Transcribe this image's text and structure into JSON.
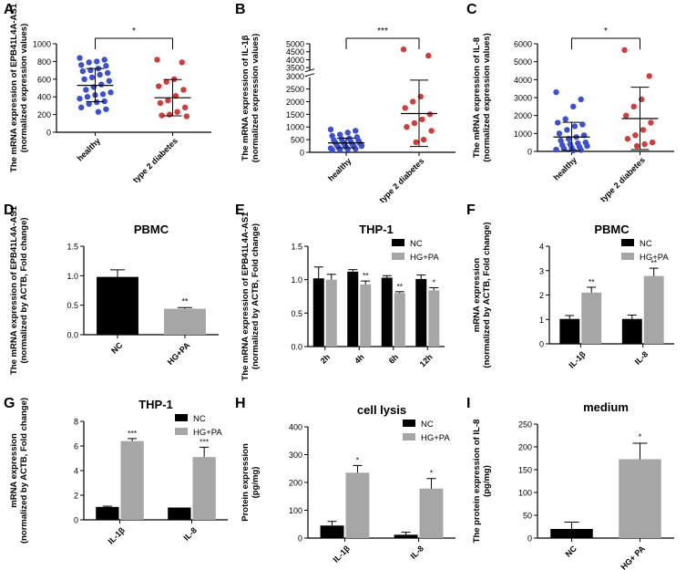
{
  "colors": {
    "axis": "#000000",
    "blue": "#3a4fd6",
    "red": "#d33a3a",
    "nc": "#000000",
    "hgpa": "#a6a6a6"
  },
  "chart_data": [
    {
      "id": "A",
      "type": "scatter",
      "panel_label": "A",
      "title": "",
      "ylabel": "The mRNA expression of EPB41L4A-AS1",
      "ylabel2": "(normalized expression values)",
      "categories": [
        "healthy",
        "type 2 diabetes"
      ],
      "ylim": [
        0,
        1000
      ],
      "yticks": [
        "0",
        "200",
        "400",
        "600",
        "800",
        "1000"
      ],
      "series": [
        {
          "name": "healthy",
          "color_key": "blue",
          "mean": 530,
          "sd_low": 345,
          "sd_high": 720,
          "values": [
            840,
            820,
            800,
            790,
            760,
            750,
            720,
            700,
            690,
            670,
            650,
            620,
            600,
            580,
            540,
            510,
            480,
            450,
            430,
            420,
            400,
            380,
            350,
            340,
            320,
            280,
            260,
            230
          ]
        },
        {
          "name": "type 2 diabetes",
          "color_key": "red",
          "mean": 390,
          "sd_low": 185,
          "sd_high": 595,
          "values": [
            820,
            790,
            600,
            570,
            520,
            480,
            410,
            360,
            330,
            280,
            230,
            200,
            190,
            180
          ]
        }
      ],
      "significance": "*"
    },
    {
      "id": "B",
      "type": "scatter",
      "panel_label": "B",
      "title": "",
      "ylabel": "The mRNA expression of IL-1β",
      "ylabel2": "(normalized expression values)",
      "categories": [
        "healthy",
        "type 2 diabetes"
      ],
      "ylim": [
        0,
        5000
      ],
      "axis_break": [
        3000,
        3500
      ],
      "yticks": [
        "0",
        "500",
        "1000",
        "1500",
        "2000",
        "2500",
        "3000",
        "3500",
        "4000",
        "4500",
        "5000"
      ],
      "series": [
        {
          "name": "healthy",
          "color_key": "blue",
          "mean": 370,
          "sd_low": 180,
          "sd_high": 560,
          "values": [
            900,
            850,
            780,
            700,
            650,
            600,
            550,
            520,
            480,
            450,
            420,
            400,
            380,
            350,
            320,
            300,
            280,
            250,
            230,
            200,
            180,
            160,
            140,
            120,
            110,
            100
          ]
        },
        {
          "name": "type 2 diabetes",
          "color_key": "red",
          "mean": 1530,
          "sd_low": 230,
          "sd_high": 2850,
          "values": [
            4650,
            4250,
            2200,
            2000,
            1750,
            1500,
            1300,
            1150,
            1000,
            850,
            500,
            400
          ]
        }
      ],
      "significance": "***"
    },
    {
      "id": "C",
      "type": "scatter",
      "panel_label": "C",
      "title": "",
      "ylabel": "The mRNA expression of IL-8",
      "ylabel2": "(normalized expression values)",
      "categories": [
        "healthy",
        "type 2 diabetes"
      ],
      "ylim": [
        0,
        6000
      ],
      "yticks": [
        "0",
        "1000",
        "2000",
        "3000",
        "4000",
        "5000",
        "6000"
      ],
      "series": [
        {
          "name": "healthy",
          "color_key": "blue",
          "mean": 800,
          "sd_low": 50,
          "sd_high": 1620,
          "values": [
            3300,
            2900,
            2500,
            1800,
            1600,
            1500,
            1400,
            1200,
            1000,
            900,
            800,
            700,
            600,
            500,
            450,
            400,
            350,
            300,
            250,
            200,
            150,
            100,
            80,
            50
          ]
        },
        {
          "name": "type 2 diabetes",
          "color_key": "red",
          "mean": 1830,
          "sd_low": 100,
          "sd_high": 3580,
          "values": [
            5650,
            4200,
            2900,
            2500,
            2000,
            1600,
            1200,
            900,
            700,
            500,
            400,
            300
          ]
        }
      ],
      "significance": "*"
    },
    {
      "id": "D",
      "type": "bar",
      "panel_label": "D",
      "title": "PBMC",
      "ylabel": "The mRNA expression of EPB41L4A-AS1",
      "ylabel2": "(normalized by ACTB, Fold change)",
      "categories": [
        "NC",
        "HG+PA"
      ],
      "ylim": [
        0,
        1.5
      ],
      "yticks": [
        "0.0",
        "0.5",
        "1.0",
        "1.5"
      ],
      "values": [
        0.98,
        0.44
      ],
      "errors": [
        0.12,
        0.02
      ],
      "bar_colors": [
        "nc",
        "hgpa"
      ],
      "stars": [
        "",
        "**"
      ]
    },
    {
      "id": "E",
      "type": "bar",
      "panel_label": "E",
      "title": "THP-1",
      "ylabel": "The mRNA expression of EPB41L4A-AS1",
      "ylabel2": "(normalized by ACTB, Fold change)",
      "categories": [
        "2h",
        "4h",
        "6h",
        "12h"
      ],
      "ylim": [
        0,
        1.5
      ],
      "yticks": [
        "0.0",
        "0.5",
        "1.0",
        "1.5"
      ],
      "series": [
        {
          "name": "NC",
          "color_key": "nc",
          "values": [
            1.02,
            1.12,
            1.03,
            1.01
          ],
          "errors": [
            0.17,
            0.03,
            0.03,
            0.06
          ],
          "stars": [
            "",
            "",
            "",
            ""
          ]
        },
        {
          "name": "HG+PA",
          "color_key": "hgpa",
          "values": [
            1.0,
            0.93,
            0.8,
            0.84
          ],
          "errors": [
            0.08,
            0.05,
            0.02,
            0.04
          ],
          "stars": [
            "",
            "**",
            "**",
            "*"
          ]
        }
      ],
      "legend": [
        "NC",
        "HG+PA"
      ]
    },
    {
      "id": "F",
      "type": "bar",
      "panel_label": "F",
      "title": "PBMC",
      "ylabel": "mRNA expression",
      "ylabel2": "(normalized by ACTB, Fold change)",
      "categories": [
        "IL-1β",
        "IL-8"
      ],
      "ylim": [
        0,
        4
      ],
      "yticks": [
        "0",
        "1",
        "2",
        "3",
        "4"
      ],
      "series": [
        {
          "name": "NC",
          "color_key": "nc",
          "values": [
            1.02,
            1.02
          ],
          "errors": [
            0.14,
            0.16
          ],
          "stars": [
            "",
            ""
          ]
        },
        {
          "name": "HG+PA",
          "color_key": "hgpa",
          "values": [
            2.1,
            2.78
          ],
          "errors": [
            0.22,
            0.32
          ],
          "stars": [
            "**",
            "**"
          ]
        }
      ],
      "legend": [
        "NC",
        "HG+PA"
      ]
    },
    {
      "id": "G",
      "type": "bar",
      "panel_label": "G",
      "title": "THP-1",
      "ylabel": "mRNA expression",
      "ylabel2": "(normalized by ACTB, Fold change)",
      "categories": [
        "IL-1β",
        "IL-8"
      ],
      "ylim": [
        0,
        8
      ],
      "yticks": [
        "0",
        "2",
        "4",
        "6",
        "8"
      ],
      "series": [
        {
          "name": "NC",
          "color_key": "nc",
          "values": [
            1.05,
            1.0
          ],
          "errors": [
            0.06,
            0.0
          ],
          "stars": [
            "",
            ""
          ]
        },
        {
          "name": "HG+PA",
          "color_key": "hgpa",
          "values": [
            6.4,
            5.1
          ],
          "errors": [
            0.2,
            0.8
          ],
          "stars": [
            "***",
            "***"
          ]
        }
      ],
      "legend": [
        "NC",
        "HG+PA"
      ]
    },
    {
      "id": "H",
      "type": "bar",
      "panel_label": "H",
      "title": "cell lysis",
      "ylabel": "Protein expression",
      "ylabel2": "(pg/mg)",
      "categories": [
        "IL-1β",
        "IL-8"
      ],
      "ylim": [
        0,
        400
      ],
      "yticks": [
        "0",
        "100",
        "200",
        "300",
        "400"
      ],
      "series": [
        {
          "name": "NC",
          "color_key": "nc",
          "values": [
            45,
            12
          ],
          "errors": [
            15,
            9
          ],
          "stars": [
            "",
            ""
          ]
        },
        {
          "name": "HG+PA",
          "color_key": "hgpa",
          "values": [
            235,
            178
          ],
          "errors": [
            26,
            36
          ],
          "stars": [
            "*",
            "*"
          ]
        }
      ],
      "legend": [
        "NC",
        "HG+PA"
      ]
    },
    {
      "id": "I",
      "type": "bar",
      "panel_label": "I",
      "title": "medium",
      "ylabel": "The protein expression of IL-8",
      "ylabel2": "(pg/mg)",
      "categories": [
        "NC",
        "HG+ PA"
      ],
      "ylim": [
        0,
        250
      ],
      "yticks": [
        "0",
        "50",
        "100",
        "150",
        "200",
        "250"
      ],
      "values": [
        20,
        173
      ],
      "errors": [
        15,
        35
      ],
      "bar_colors": [
        "nc",
        "hgpa"
      ],
      "stars": [
        "",
        "*"
      ]
    }
  ]
}
